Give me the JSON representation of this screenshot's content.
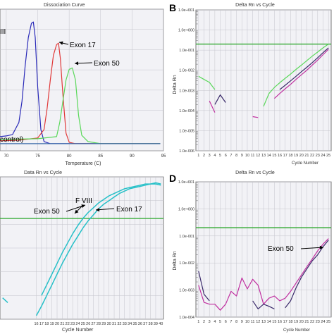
{
  "panels": [
    {
      "id": "A",
      "letter": "",
      "title": "Dissociation Curve",
      "xlabel": "Temperature (C)",
      "ylabel": ""
    },
    {
      "id": "B",
      "letter": "B",
      "title": "Delta Rn vs Cycle",
      "xlabel": "Cycle Number",
      "ylabel": "Delta Rn"
    },
    {
      "id": "C",
      "letter": "",
      "title": "Data Rn vs Cycle",
      "xlabel": "Cycle Number",
      "ylabel": ""
    },
    {
      "id": "D",
      "letter": "D",
      "title": "Delta Rn vs Cycle",
      "xlabel": "Cycle Number",
      "ylabel": "Delta Rn"
    }
  ],
  "colors": {
    "background": "#ffffff",
    "plot_background": "#f2f2f6",
    "grid": "#c4c4cc",
    "axis": "#555555",
    "threshold": "#33aa33",
    "faviii_blue": "#2a2ab8",
    "exon17_red": "#e03838",
    "exon50_green": "#5ad85a",
    "baseline_blue": "#3a6aa8",
    "teal": "#26c0c8",
    "dark_purple": "#3a2a6a",
    "magenta": "#c030a0"
  },
  "chart_data": [
    {
      "id": "A",
      "type": "line",
      "title": "Dissociation Curve",
      "xlabel": "Temperature (C)",
      "ylabel": "",
      "xlim": [
        69,
        95
      ],
      "ylim": [
        -0.1,
        1.9
      ],
      "xticks": [
        70,
        75,
        80,
        85,
        90,
        95
      ],
      "grid": true,
      "series": [
        {
          "name": "F VIII",
          "color": "#2a2ab8",
          "x": [
            69,
            70,
            71,
            72,
            72.5,
            73,
            73.5,
            74,
            74.3,
            74.6,
            75,
            75.5,
            76,
            77,
            80,
            85,
            94.5
          ],
          "y": [
            0.1,
            0.11,
            0.13,
            0.3,
            0.6,
            1.1,
            1.5,
            1.7,
            1.72,
            1.5,
            0.8,
            0.2,
            0.03,
            0.0,
            0.0,
            0.0,
            0.0
          ]
        },
        {
          "name": "Exon 17",
          "color": "#e03838",
          "x": [
            69,
            72,
            75,
            76,
            76.5,
            77,
            77.5,
            78,
            78.3,
            78.6,
            79,
            79.5,
            80,
            81,
            85,
            94.5
          ],
          "y": [
            0.04,
            0.05,
            0.08,
            0.2,
            0.5,
            0.9,
            1.25,
            1.4,
            1.42,
            1.2,
            0.7,
            0.15,
            0.02,
            0.0,
            0.0,
            0.0
          ]
        },
        {
          "name": "Exon 50",
          "color": "#5ad85a",
          "x": [
            69,
            75,
            78,
            78.5,
            79,
            79.5,
            80,
            80.5,
            81,
            81.5,
            82,
            83,
            85,
            94.5
          ],
          "y": [
            0.06,
            0.07,
            0.1,
            0.3,
            0.6,
            0.9,
            1.05,
            1.07,
            0.9,
            0.4,
            0.12,
            0.03,
            0.0,
            0.0
          ]
        },
        {
          "name": "control",
          "color": "#3a6aa8",
          "x": [
            69,
            94.5
          ],
          "y": [
            0.0,
            0.0
          ]
        }
      ],
      "annotations": [
        "III",
        "Exon 17",
        "Exon 50",
        "control)"
      ]
    },
    {
      "id": "B",
      "type": "line",
      "title": "Delta Rn vs Cycle",
      "xlabel": "Cycle Number",
      "ylabel": "Delta Rn",
      "scale": "log",
      "xlim": [
        0.5,
        25.5
      ],
      "xticks": [
        1,
        2,
        3,
        4,
        5,
        6,
        7,
        8,
        9,
        10,
        11,
        12,
        13,
        14,
        15,
        16,
        17,
        18,
        19,
        20,
        21,
        22,
        23,
        24,
        25
      ],
      "ylim": [
        1e-06,
        10
      ],
      "yticks": [
        "1.0e-006",
        "1.0e-005",
        "1.0e-004",
        "1.0e-003",
        "1.0e-002",
        "1.0e-001",
        "1.0e+000",
        "1.0e+001"
      ],
      "threshold": 0.2,
      "grid": true,
      "series": [
        {
          "name": "",
          "color": "#5ad85a",
          "x": [
            1,
            2,
            3,
            4
          ],
          "y": [
            0.005,
            0.0035,
            0.0025,
            0.0011
          ]
        },
        {
          "name": "",
          "color": "#5ad85a",
          "x": [
            13,
            14,
            15,
            16,
            17,
            18,
            19,
            20,
            21,
            22,
            23,
            24,
            25
          ],
          "y": [
            0.00016,
            0.0007,
            0.0014,
            0.0024,
            0.004,
            0.0065,
            0.011,
            0.018,
            0.03,
            0.05,
            0.08,
            0.13,
            0.2
          ]
        },
        {
          "name": "",
          "color": "#3a2a6a",
          "x": [
            4,
            5,
            6
          ],
          "y": [
            0.0002,
            0.0006,
            0.00025
          ]
        },
        {
          "name": "",
          "color": "#3a2a6a",
          "x": [
            16,
            17,
            18,
            19,
            20,
            21,
            22,
            23,
            24,
            25
          ],
          "y": [
            0.0011,
            0.0018,
            0.003,
            0.005,
            0.0085,
            0.014,
            0.024,
            0.042,
            0.075,
            0.13
          ]
        },
        {
          "name": "",
          "color": "#c030a0",
          "x": [
            3,
            4
          ],
          "y": [
            0.0003,
            8e-05
          ]
        },
        {
          "name": "",
          "color": "#c030a0",
          "x": [
            11,
            12
          ],
          "y": [
            5e-05,
            4.5e-05
          ]
        },
        {
          "name": "",
          "color": "#c030a0",
          "x": [
            15,
            16,
            17,
            18,
            19,
            20,
            21,
            22,
            23,
            24,
            25
          ],
          "y": [
            0.0004,
            0.0007,
            0.0012,
            0.002,
            0.0035,
            0.006,
            0.01,
            0.018,
            0.032,
            0.06,
            0.11
          ]
        }
      ]
    },
    {
      "id": "C",
      "type": "line",
      "title": "Data Rn vs Cycle",
      "xlabel": "Cycle Number",
      "ylabel": "",
      "xlim": [
        9,
        40.5
      ],
      "xticks": [
        16,
        17,
        18,
        19,
        20,
        21,
        22,
        23,
        24,
        25,
        26,
        27,
        28,
        29,
        30,
        31,
        32,
        33,
        34,
        35,
        36,
        37,
        38,
        39,
        40
      ],
      "ylim": [
        0,
        1.2
      ],
      "threshold": 0.85,
      "grid": true,
      "series": [
        {
          "name": "F VIII",
          "color": "#26c0c8",
          "x": [
            17,
            18,
            19,
            20,
            21,
            22,
            23,
            24,
            25,
            26,
            27,
            28,
            29,
            30,
            31,
            32,
            33,
            34,
            35,
            36,
            37,
            38,
            39,
            40
          ],
          "y": [
            0.2,
            0.29,
            0.38,
            0.47,
            0.56,
            0.64,
            0.72,
            0.79,
            0.85,
            0.9,
            0.94,
            0.98,
            1.01,
            1.04,
            1.06,
            1.08,
            1.1,
            1.11,
            1.12,
            1.13,
            1.14,
            1.14,
            1.15,
            1.14
          ]
        },
        {
          "name": "Exon 17",
          "color": "#26c0c8",
          "x": [
            16,
            17,
            18,
            19,
            20,
            21,
            22,
            23,
            24,
            25,
            26,
            27,
            28,
            29,
            30,
            31,
            32,
            33,
            34,
            35,
            36,
            37,
            38,
            39,
            40
          ],
          "y": [
            0.03,
            0.11,
            0.2,
            0.29,
            0.38,
            0.47,
            0.55,
            0.63,
            0.7,
            0.77,
            0.83,
            0.88,
            0.93,
            0.97,
            1.0,
            1.03,
            1.06,
            1.08,
            1.1,
            1.11,
            1.12,
            1.13,
            1.14,
            1.14,
            1.13
          ]
        },
        {
          "name": "Exon 50",
          "color": "#26c0c8",
          "x": [
            9.5,
            10.5
          ],
          "y": [
            0.18,
            0.14
          ]
        }
      ],
      "annotations": [
        "F VIII",
        "Exon 50",
        "Exon 17"
      ]
    },
    {
      "id": "D",
      "type": "line",
      "title": "Delta Rn vs Cycle",
      "xlabel": "Cycle Number",
      "ylabel": "Delta Rn",
      "scale": "log",
      "xlim": [
        0.5,
        25.5
      ],
      "xticks": [
        1,
        2,
        3,
        4,
        5,
        6,
        7,
        8,
        9,
        10,
        11,
        12,
        13,
        14,
        15,
        16,
        17,
        18,
        19,
        20,
        21,
        22,
        23,
        24,
        25
      ],
      "ylim": [
        0.0001,
        10
      ],
      "yticks": [
        "1.0e-004",
        "1.0e-003",
        "1.0e-002",
        "1.0e-001",
        "1.0e+000",
        "1.0e+001"
      ],
      "threshold": 0.2,
      "grid": true,
      "series": [
        {
          "name": "",
          "color": "#c030a0",
          "x": [
            1,
            2,
            3,
            4,
            5,
            6,
            7,
            8,
            9,
            10,
            11,
            12,
            13,
            14,
            15,
            16,
            17,
            18,
            19,
            20,
            21,
            22,
            23,
            24,
            25
          ],
          "y": [
            0.0015,
            0.00035,
            0.0003,
            0.0003,
            0.00018,
            0.0003,
            0.0009,
            0.0006,
            0.0028,
            0.0011,
            0.0025,
            0.0015,
            0.0003,
            0.0005,
            0.0006,
            0.0004,
            0.0005,
            0.0009,
            0.0018,
            0.0036,
            0.0072,
            0.014,
            0.028,
            0.05,
            0.08
          ]
        },
        {
          "name": "",
          "color": "#3a2a6a",
          "x": [
            1,
            2,
            3
          ],
          "y": [
            0.005,
            0.0007,
            0.0004
          ]
        },
        {
          "name": "",
          "color": "#3a2a6a",
          "x": [
            11,
            12,
            13,
            14,
            15
          ],
          "y": [
            0.0004,
            0.0002,
            0.0003,
            0.00025,
            0.0002
          ]
        },
        {
          "name": "",
          "color": "#3a2a6a",
          "x": [
            17,
            18,
            19,
            20,
            21,
            22,
            23,
            24,
            25
          ],
          "y": [
            0.00022,
            0.0004,
            0.0012,
            0.003,
            0.006,
            0.012,
            0.02,
            0.04,
            0.07
          ]
        }
      ],
      "annotations": [
        "Exon 50"
      ]
    }
  ]
}
